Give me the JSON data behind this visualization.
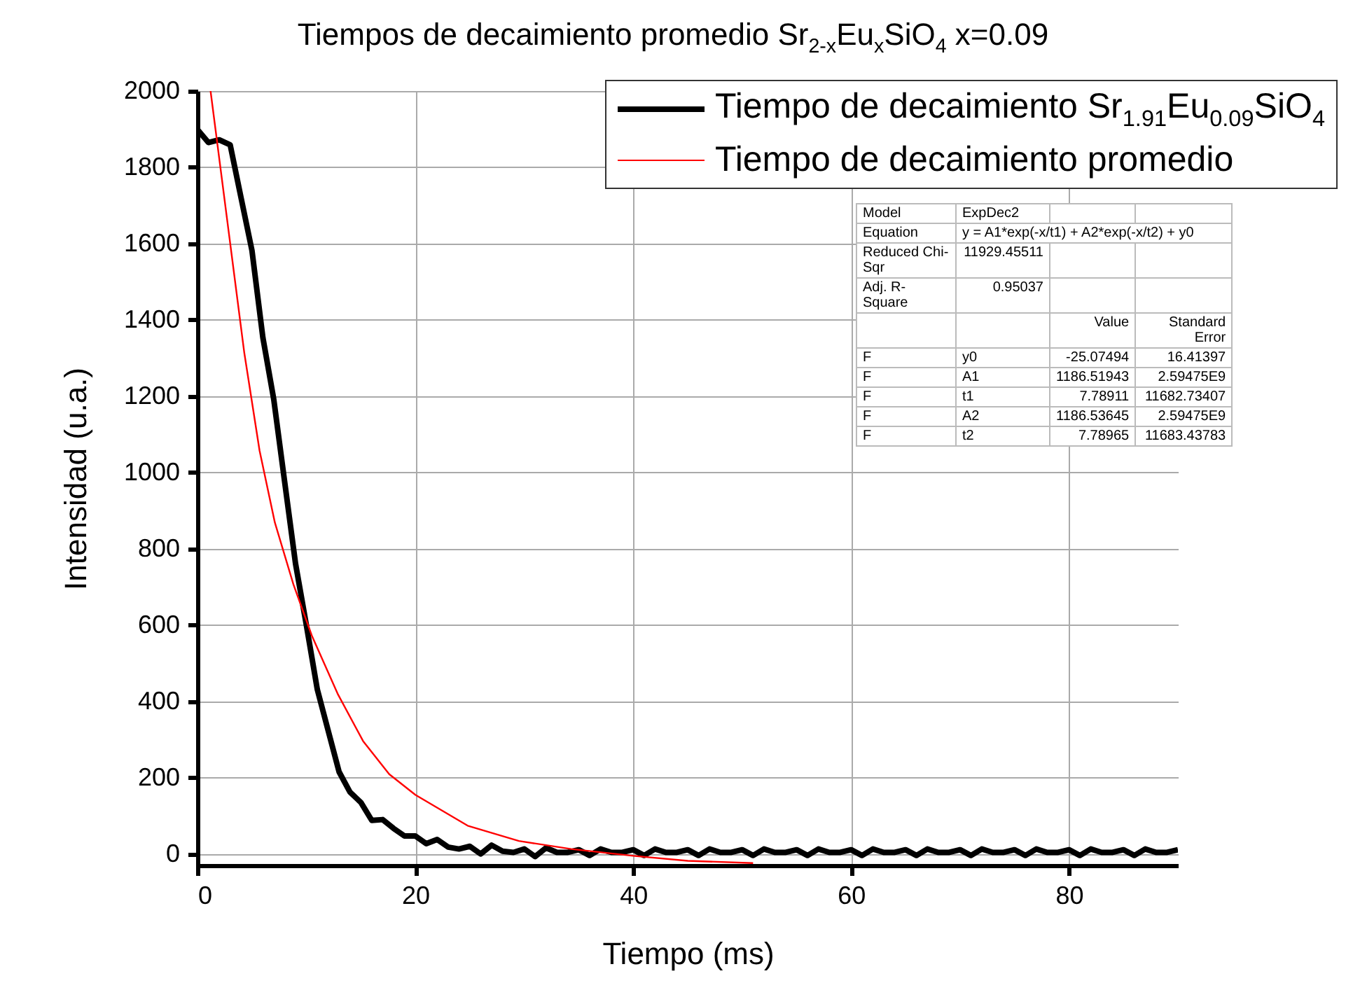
{
  "chart_data": {
    "type": "line",
    "title": "Tiempos de decaimiento promedio Sr$_{2-x}$Eu$_{x}$SiO$_{4}$ x=0.09",
    "xlabel": "Tiempo (ms)",
    "ylabel": "Intensidad (u.a.)",
    "xlim": [
      0,
      90
    ],
    "xticks": [
      0,
      20,
      40,
      60,
      80
    ],
    "ylim": [
      -30,
      2000
    ],
    "yticks": [
      0,
      200,
      400,
      600,
      800,
      1000,
      1200,
      1400,
      1600,
      1800,
      2000
    ],
    "grid": true,
    "legend": "top right",
    "series": [
      {
        "name": "Tiempo de decaimiento Sr$_{1.91}$Eu$_{0.09}$SiO$_{4}$",
        "color": "#000000",
        "x": [
          0,
          1,
          2,
          3,
          4,
          5,
          6,
          7,
          8,
          9,
          10,
          11,
          12,
          13,
          14,
          15,
          16,
          17,
          18,
          19,
          20,
          21,
          22,
          23,
          24,
          25,
          26,
          27,
          28,
          29,
          30,
          31,
          32,
          33,
          34,
          35,
          36,
          37,
          38,
          39,
          40,
          41,
          42,
          43,
          44,
          45,
          46,
          47,
          48,
          49,
          50,
          51,
          52,
          53,
          54,
          55,
          56,
          57,
          58,
          59,
          60,
          61,
          62,
          63,
          64,
          65,
          66,
          67,
          68,
          69,
          70,
          71,
          72,
          73,
          74,
          75,
          76,
          77,
          78,
          79,
          80,
          81,
          82,
          83,
          84,
          85,
          86,
          87,
          88,
          89,
          90
        ],
        "values": [
          1899,
          1865,
          1872,
          1859,
          1720,
          1582,
          1354,
          1192,
          976,
          761,
          599,
          431,
          323,
          215,
          162,
          135,
          88,
          90,
          67,
          47,
          47,
          27,
          38,
          18,
          13,
          20,
          0,
          23,
          7,
          4,
          13,
          -7,
          16,
          4,
          4,
          11,
          -4,
          13,
          4,
          4,
          11,
          -4,
          13,
          4,
          4,
          11,
          -4,
          13,
          4,
          4,
          11,
          -4,
          13,
          4,
          4,
          11,
          -4,
          13,
          4,
          4,
          11,
          -4,
          13,
          4,
          4,
          11,
          -4,
          13,
          4,
          4,
          11,
          -4,
          13,
          4,
          4,
          11,
          -4,
          13,
          4,
          4,
          11,
          -4,
          13,
          4,
          4,
          11,
          -4,
          13,
          4,
          4,
          11
        ]
      },
      {
        "name": "Tiempo de decaimiento promedio",
        "color": "#ff0000",
        "x": [
          1.2,
          2.9,
          4.3,
          5.7,
          7.1,
          8.8,
          10.5,
          12.9,
          15.2,
          17.6,
          20,
          24.8,
          29.5,
          34.3,
          40,
          45,
          51
        ],
        "values": [
          2000,
          1623,
          1313,
          1057,
          869,
          707,
          572,
          418,
          296,
          209,
          155,
          74,
          34,
          13,
          -5,
          -18,
          -24
        ]
      }
    ],
    "annotations": [
      "Model\tExpDec2",
      "Equation\ty = A1*exp(-x/t1) + A2*exp(-x/t2) + y0",
      "Reduced Chi-Sqr\t11929.45511",
      "Adj. R-Square\t0.95037",
      "\t\tValue\tStandard Error",
      "F\ty0\t-25.07494\t16.41397",
      "F\tA1\t1186.51943\t2.59475E9",
      "F\tt1\t7.78911\t11682.73407",
      "F\tA2\t1186.53645\t2.59475E9",
      "F\tt2\t7.78965\t11683.43783"
    ]
  }
}
